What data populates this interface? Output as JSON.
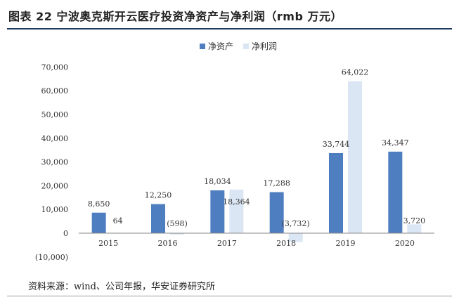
{
  "figure": {
    "title": "图表 22 宁波奥克斯开云医疗投资净资产与净利润（rmb 万元）",
    "source": "资料来源：wind、公司年报，华安证券研究所"
  },
  "chart_data": {
    "type": "bar",
    "title": "",
    "xlabel": "",
    "ylabel": "",
    "categories": [
      "2015",
      "2016",
      "2017",
      "2018",
      "2019",
      "2020"
    ],
    "series": [
      {
        "name": "净资产",
        "color": "#4f7ec0",
        "values": [
          8650,
          12250,
          18034,
          17288,
          33744,
          34347
        ],
        "labels": [
          "8,650",
          "12,250",
          "18,034",
          "17,288",
          "33,744",
          "34,347"
        ]
      },
      {
        "name": "净利润",
        "color": "#dbe6f4",
        "values": [
          64,
          -598,
          18364,
          -3732,
          64022,
          3720
        ],
        "labels": [
          "64",
          "(598)",
          "18,364",
          "(3,732)",
          "64,022",
          "3,720"
        ]
      }
    ],
    "ylim": [
      -10000,
      70000
    ],
    "yticks": [
      -10000,
      0,
      10000,
      20000,
      30000,
      40000,
      50000,
      60000,
      70000
    ],
    "ytick_labels": [
      "(10,000)",
      "0",
      "10,000",
      "20,000",
      "30,000",
      "40,000",
      "50,000",
      "60,000",
      "70,000"
    ],
    "legend_position": "top-center",
    "grid": false
  }
}
